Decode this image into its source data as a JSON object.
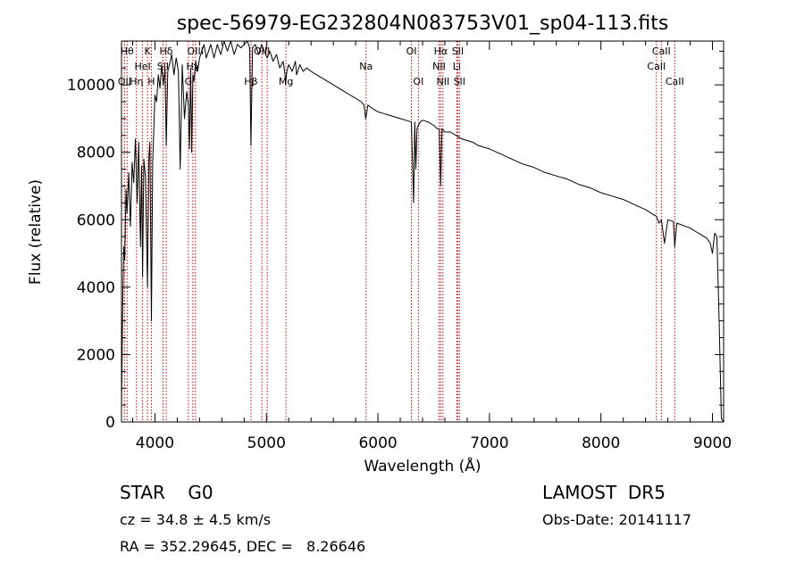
{
  "chart_data": {
    "type": "line",
    "title": "spec-56979-EG232804N083753V01_sp04-113.fits",
    "xlabel": "Wavelength (Å)",
    "ylabel": "Flux (relative)",
    "xlim": [
      3700,
      9100
    ],
    "ylim": [
      0,
      11300
    ],
    "xticks": [
      4000,
      5000,
      6000,
      7000,
      8000,
      9000
    ],
    "yticks": [
      0,
      2000,
      4000,
      6000,
      8000,
      10000
    ],
    "grid": false,
    "series": [
      {
        "x": [
          3700,
          3710,
          3720,
          3730,
          3740,
          3750,
          3765,
          3780,
          3795,
          3810,
          3825,
          3840,
          3855,
          3870,
          3880,
          3889,
          3900,
          3915,
          3933,
          3945,
          3955,
          3968,
          3980,
          3990,
          4000,
          4015,
          4030,
          4045,
          4060,
          4075,
          4090,
          4101,
          4115,
          4130,
          4150,
          4170,
          4190,
          4210,
          4226,
          4245,
          4265,
          4285,
          4300,
          4310,
          4320,
          4330,
          4340,
          4350,
          4365,
          4383,
          4400,
          4420,
          4440,
          4460,
          4480,
          4500,
          4530,
          4560,
          4590,
          4620,
          4650,
          4680,
          4710,
          4740,
          4770,
          4800,
          4830,
          4850,
          4861,
          4875,
          4900,
          4930,
          4957,
          4980,
          5007,
          5030,
          5060,
          5090,
          5120,
          5150,
          5167,
          5172,
          5183,
          5200,
          5230,
          5260,
          5270,
          5300,
          5330,
          5360,
          5400,
          5450,
          5500,
          5550,
          5600,
          5650,
          5700,
          5750,
          5800,
          5850,
          5875,
          5890,
          5896,
          5910,
          5950,
          6000,
          6050,
          6100,
          6150,
          6200,
          6250,
          6300,
          6320,
          6330,
          6340,
          6350,
          6363,
          6380,
          6400,
          6450,
          6500,
          6530,
          6550,
          6563,
          6575,
          6600,
          6650,
          6700,
          6750,
          6800,
          6850,
          6900,
          6950,
          7000,
          7100,
          7200,
          7300,
          7400,
          7500,
          7600,
          7700,
          7800,
          7900,
          8000,
          8100,
          8200,
          8300,
          8400,
          8470,
          8498,
          8520,
          8542,
          8570,
          8600,
          8650,
          8662,
          8680,
          8720,
          8760,
          8800,
          8850,
          8900,
          8950,
          8980,
          9000,
          9020,
          9040,
          9060,
          9080,
          9100
        ],
        "y": [
          400,
          3200,
          5200,
          4800,
          6900,
          6200,
          7400,
          5800,
          7700,
          7100,
          8400,
          6500,
          8300,
          5200,
          7600,
          4300,
          7800,
          7300,
          4000,
          7800,
          8300,
          3000,
          7700,
          8700,
          9700,
          9500,
          10300,
          9900,
          10600,
          10000,
          10500,
          8200,
          10400,
          10600,
          10900,
          10300,
          10800,
          10400,
          7500,
          10600,
          9000,
          9800,
          9400,
          8100,
          10500,
          8000,
          10300,
          10100,
          10700,
          10400,
          10800,
          11000,
          11200,
          10800,
          11000,
          11200,
          10800,
          11200,
          10900,
          11300,
          11000,
          11300,
          10900,
          11200,
          11100,
          11200,
          11300,
          11100,
          8200,
          11100,
          11200,
          10900,
          11200,
          11000,
          10800,
          11000,
          10700,
          10900,
          10500,
          10700,
          10300,
          10000,
          10400,
          10600,
          10400,
          10700,
          10300,
          10600,
          10400,
          10500,
          10400,
          10300,
          10200,
          10100,
          10000,
          9900,
          9800,
          9700,
          9600,
          9500,
          9400,
          9000,
          9100,
          9400,
          9300,
          9200,
          9150,
          9100,
          9050,
          9000,
          8950,
          8900,
          6500,
          8900,
          7500,
          8700,
          8800,
          8900,
          8950,
          8900,
          8800,
          8700,
          8700,
          7000,
          8700,
          8600,
          8600,
          8500,
          8400,
          8350,
          8300,
          8200,
          8150,
          8100,
          7950,
          7800,
          7650,
          7550,
          7400,
          7300,
          7200,
          7050,
          6950,
          6800,
          6700,
          6600,
          6450,
          6300,
          6150,
          6100,
          5900,
          6000,
          5300,
          6000,
          5950,
          5200,
          5900,
          5850,
          5800,
          5750,
          5650,
          5550,
          5450,
          5300,
          5000,
          5600,
          5500,
          3000,
          100,
          0
        ]
      }
    ],
    "line_markers": [
      {
        "x": 3727,
        "label": "OII",
        "row": 2
      },
      {
        "x": 3750,
        "label": "Hθ",
        "row": 0
      },
      {
        "x": 3835,
        "label": "Hη",
        "row": 2
      },
      {
        "x": 3889,
        "label": "HeI",
        "row": 1
      },
      {
        "x": 3933,
        "label": "K",
        "row": 0
      },
      {
        "x": 3968,
        "label": "H",
        "row": 2
      },
      {
        "x": 4072,
        "label": "SII",
        "row": 1
      },
      {
        "x": 4101,
        "label": "Hδ",
        "row": 0
      },
      {
        "x": 4300,
        "label": "G",
        "row": 2
      },
      {
        "x": 4340,
        "label": "Hγ",
        "row": 1
      },
      {
        "x": 4363,
        "label": "OIII",
        "row": 0
      },
      {
        "x": 4861,
        "label": "Hβ",
        "row": 2
      },
      {
        "x": 4959,
        "label": "OIII",
        "row": 0
      },
      {
        "x": 5007,
        "label": "",
        "row": 0
      },
      {
        "x": 5175,
        "label": "Mg",
        "row": 2
      },
      {
        "x": 5893,
        "label": "Na",
        "row": 1
      },
      {
        "x": 6300,
        "label": "OI",
        "row": 0
      },
      {
        "x": 6363,
        "label": "OI",
        "row": 2
      },
      {
        "x": 6548,
        "label": "NII",
        "row": 1
      },
      {
        "x": 6563,
        "label": "Hα",
        "row": 0
      },
      {
        "x": 6583,
        "label": "NII",
        "row": 2
      },
      {
        "x": 6707,
        "label": "Li",
        "row": 1
      },
      {
        "x": 6716,
        "label": "SII",
        "row": 0
      },
      {
        "x": 6731,
        "label": "SII",
        "row": 2
      },
      {
        "x": 8498,
        "label": "CaII",
        "row": 1
      },
      {
        "x": 8542,
        "label": "CaII",
        "row": 0
      },
      {
        "x": 8662,
        "label": "CaII",
        "row": 2
      }
    ],
    "line_color": "#000000",
    "marker_color": "#cc0000"
  },
  "info": {
    "class": "STAR    G0",
    "survey": "LAMOST  DR5",
    "velocity": "cz = 34.8 ± 4.5 km/s",
    "obs_date": "Obs-Date: 20141117",
    "coords": "RA = 352.29645, DEC =   8.26646"
  }
}
